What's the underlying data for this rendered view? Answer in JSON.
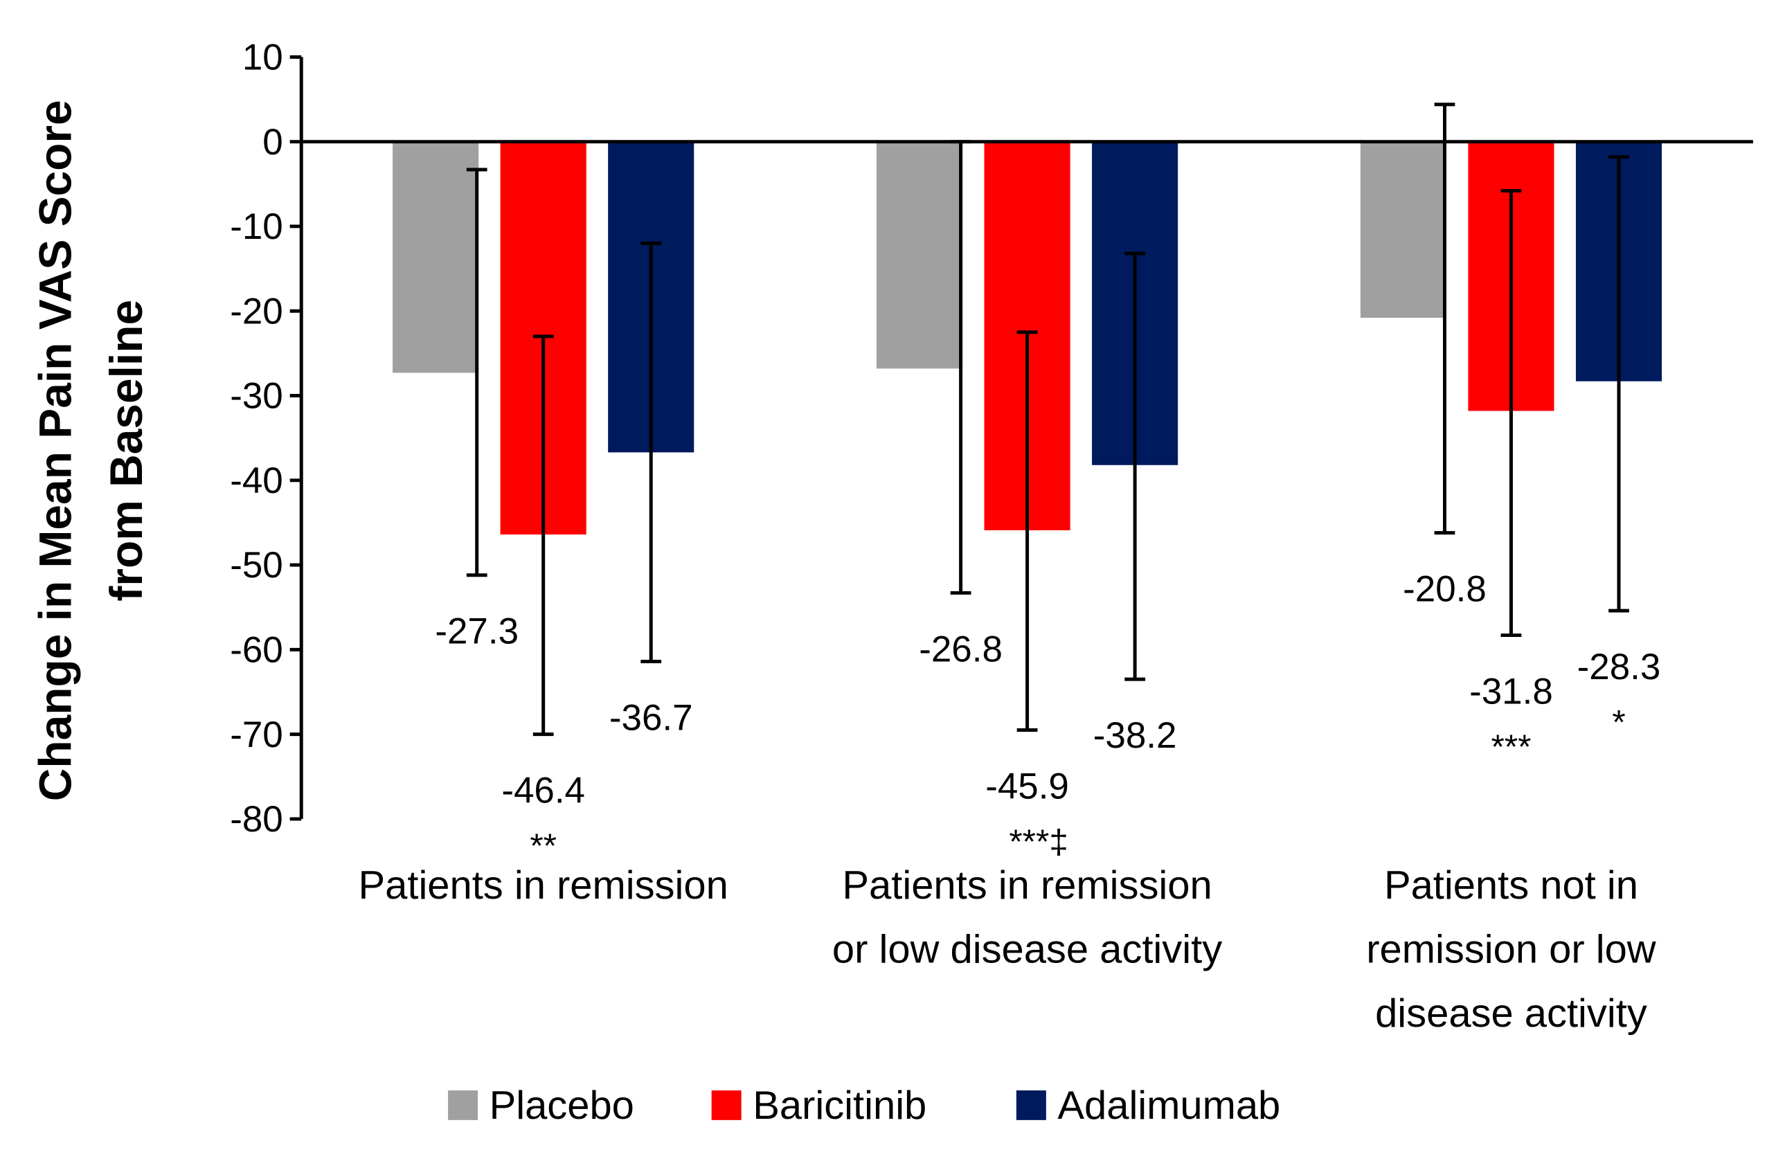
{
  "chart_data": {
    "type": "bar",
    "title": "",
    "xlabel": "",
    "ylabel": "Change in Mean Pain VAS Score from Baseline",
    "ylabel_lines": [
      "Change in Mean Pain VAS Score",
      "from Baseline"
    ],
    "ylim": [
      -80,
      10
    ],
    "yticks": [
      10,
      0,
      -10,
      -20,
      -30,
      -40,
      -50,
      -60,
      -70,
      -80
    ],
    "grid": false,
    "legend_position": "bottom",
    "categories": [
      [
        "Patients in remission"
      ],
      [
        "Patients in remission",
        "or low disease activity"
      ],
      [
        "Patients not in",
        "remission or low",
        "disease activity"
      ]
    ],
    "series": [
      {
        "name": "Placebo",
        "color": "#a0a0a0",
        "values": [
          -27.3,
          -26.8,
          -20.8
        ],
        "error_low": [
          -51.2,
          -53.3,
          -46.2
        ],
        "error_high": [
          -3.3,
          0.0,
          4.4
        ],
        "labels": [
          "-27.3",
          "-26.8",
          "-20.8"
        ],
        "annotations": [
          "",
          "",
          ""
        ]
      },
      {
        "name": "Baricitinib",
        "color": "#ff0000",
        "values": [
          -46.4,
          -45.9,
          -31.8
        ],
        "error_low": [
          -70.0,
          -69.5,
          -58.3
        ],
        "error_high": [
          -23.0,
          -22.5,
          -5.8
        ],
        "labels": [
          "-46.4",
          "-45.9",
          "-31.8"
        ],
        "annotations": [
          "**",
          "***‡",
          "***"
        ]
      },
      {
        "name": "Adalimumab",
        "color": "#001a5e",
        "values": [
          -36.7,
          -38.2,
          -28.3
        ],
        "error_low": [
          -61.4,
          -63.5,
          -55.4
        ],
        "error_high": [
          -12.0,
          -13.2,
          -1.8
        ],
        "labels": [
          "-36.7",
          "-38.2",
          "-28.3"
        ],
        "annotations": [
          "",
          "",
          "*"
        ]
      }
    ]
  }
}
